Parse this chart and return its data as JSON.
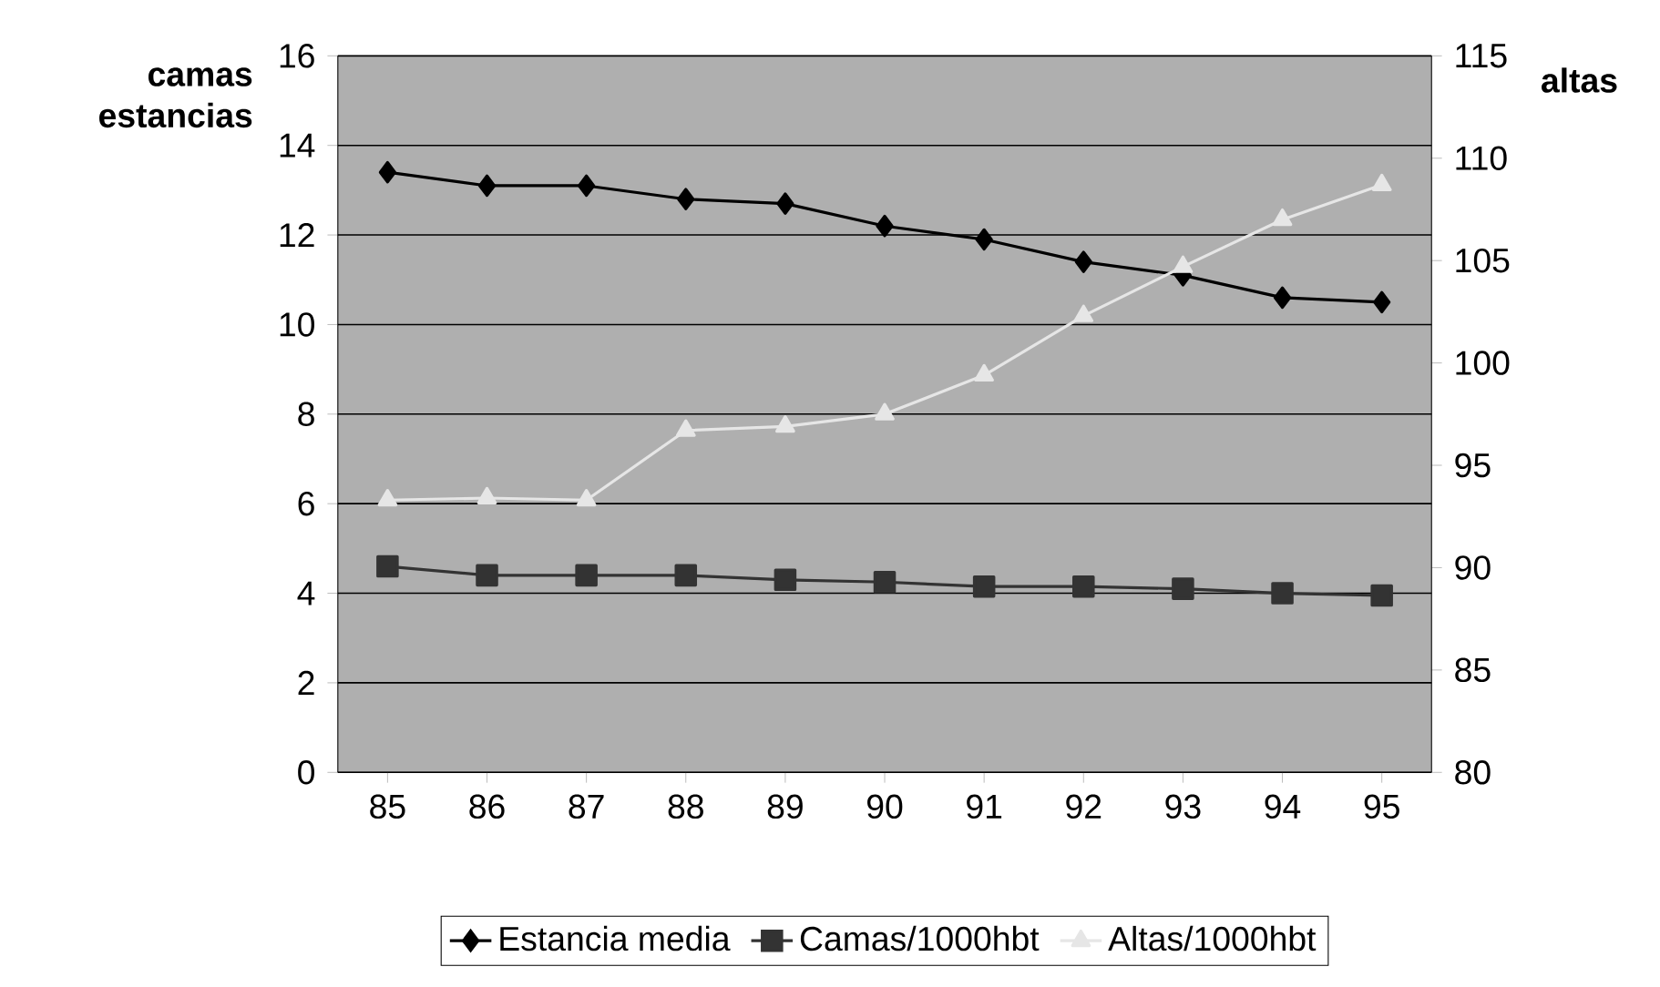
{
  "chart_data": {
    "type": "line",
    "ylabel": "camas estancias",
    "y2label": "altas",
    "categories": [
      "85",
      "86",
      "87",
      "88",
      "89",
      "90",
      "91",
      "92",
      "93",
      "94",
      "95"
    ],
    "series": [
      {
        "name": "Estancia media",
        "color": "#000000",
        "marker": "diamond",
        "values": [
          13.4,
          13.1,
          13.1,
          12.8,
          12.7,
          12.2,
          11.9,
          11.4,
          11.1,
          10.6,
          10.5
        ]
      },
      {
        "name": "Camas/1000hbt",
        "color": "#333333",
        "marker": "square",
        "values": [
          4.6,
          4.4,
          4.4,
          4.4,
          4.3,
          4.25,
          4.15,
          4.15,
          4.1,
          4.0,
          3.95
        ]
      },
      {
        "name": "Altas/1000hbt",
        "color": "#e6e6e6",
        "marker": "triangle",
        "axis": "y2",
        "values": [
          93.3,
          93.4,
          93.3,
          96.7,
          96.9,
          97.5,
          99.4,
          102.3,
          104.7,
          107.0,
          108.7
        ]
      }
    ],
    "ylim": [
      0,
      16
    ],
    "yticks": [
      0,
      2,
      4,
      6,
      8,
      10,
      12,
      14,
      16
    ],
    "y2lim": [
      80,
      115
    ],
    "y2ticks": [
      80,
      85,
      90,
      95,
      100,
      105,
      110,
      115
    ],
    "grid": "y",
    "legend": "bottom",
    "line_style": "solid"
  }
}
